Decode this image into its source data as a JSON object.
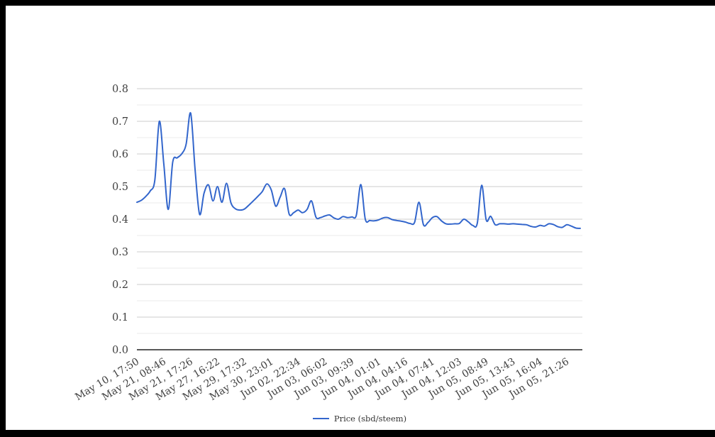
{
  "window": {
    "background_color": "#ffffff",
    "frame_color": "#000000"
  },
  "chart_data": {
    "type": "line",
    "title": "",
    "legend_label": "Price (sbd/steem)",
    "legend_position": "bottom",
    "line_color": "#3366cc",
    "grid_major_color": "#cccccc",
    "grid_minor_color": "#ebebeb",
    "baseline_color": "#222222",
    "tick_text_color": "#404040",
    "grid": "horizontal-only",
    "y_axis": {
      "min": 0.0,
      "max": 0.8,
      "tick_step": 0.1,
      "minor_step": 0.05,
      "tick_labels": [
        "0.0",
        "0.1",
        "0.2",
        "0.3",
        "0.4",
        "0.5",
        "0.6",
        "0.7",
        "0.8"
      ]
    },
    "x_axis": {
      "label_every": 6,
      "label_rotation_deg": -31,
      "tick_labels": [
        "May 10, 17:50",
        "May 21, 08:46",
        "May 21, 17:26",
        "May 27, 16:22",
        "May 29, 17:32",
        "May 30, 23:01",
        "Jun 02, 22:34",
        "Jun 03, 06:02",
        "Jun 03, 09:39",
        "Jun 04, 01:01",
        "Jun 04, 04:16",
        "Jun 04, 07:41",
        "Jun 04, 12:03",
        "Jun 05, 08:49",
        "Jun 05, 13:43",
        "Jun 05, 16:04",
        "Jun 05, 21:26"
      ]
    },
    "series": [
      {
        "name": "Price (sbd/steem)",
        "values": [
          0.452,
          0.458,
          0.47,
          0.487,
          0.52,
          0.7,
          0.57,
          0.43,
          0.575,
          0.588,
          0.6,
          0.63,
          0.725,
          0.55,
          0.415,
          0.48,
          0.505,
          0.456,
          0.5,
          0.452,
          0.51,
          0.45,
          0.432,
          0.428,
          0.431,
          0.443,
          0.456,
          0.47,
          0.485,
          0.508,
          0.49,
          0.44,
          0.468,
          0.493,
          0.416,
          0.42,
          0.428,
          0.42,
          0.43,
          0.456,
          0.406,
          0.405,
          0.41,
          0.413,
          0.404,
          0.4,
          0.408,
          0.405,
          0.407,
          0.412,
          0.506,
          0.4,
          0.396,
          0.395,
          0.398,
          0.404,
          0.405,
          0.399,
          0.396,
          0.394,
          0.391,
          0.387,
          0.39,
          0.452,
          0.383,
          0.39,
          0.405,
          0.408,
          0.395,
          0.386,
          0.385,
          0.386,
          0.387,
          0.4,
          0.392,
          0.381,
          0.387,
          0.504,
          0.398,
          0.409,
          0.383,
          0.386,
          0.386,
          0.385,
          0.386,
          0.385,
          0.384,
          0.383,
          0.378,
          0.376,
          0.381,
          0.379,
          0.386,
          0.384,
          0.377,
          0.375,
          0.383,
          0.379,
          0.373,
          0.372
        ]
      }
    ]
  }
}
